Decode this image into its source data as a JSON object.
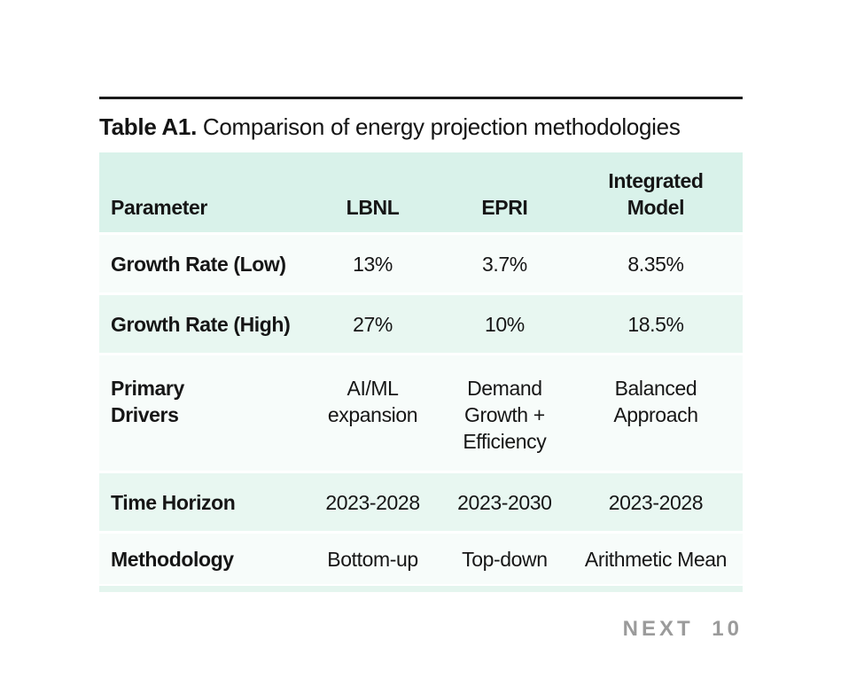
{
  "caption": {
    "bold": "Table A1.",
    "rest": " Comparison of energy projection methodologies"
  },
  "table": {
    "columns": [
      "Parameter",
      "LBNL",
      "EPRI",
      "Integrated\nModel"
    ],
    "rows": [
      {
        "label": "Growth Rate (Low)",
        "values": [
          "13%",
          "3.7%",
          "8.35%"
        ]
      },
      {
        "label": "Growth Rate (High)",
        "values": [
          "27%",
          "10%",
          "18.5%"
        ]
      },
      {
        "label": "Primary\nDrivers",
        "values": [
          "AI/ML\nexpansion",
          "Demand\nGrowth +\nEfficiency",
          "Balanced\nApproach"
        ]
      },
      {
        "label": "Time Horizon",
        "values": [
          "2023-2028",
          "2023-2030",
          "2023-2028"
        ]
      },
      {
        "label": "Methodology",
        "values": [
          "Bottom-up",
          "Top-down",
          "Arithmetic Mean"
        ]
      }
    ]
  },
  "footer": {
    "brand": "NEXT 10"
  },
  "colors": {
    "header_band": "#d9f2ea",
    "row_mint": "#e8f7f1",
    "row_pale": "#f7fcfa",
    "bottom_strip": "#e4f5ee",
    "rule": "#1a1a1a",
    "text": "#161616",
    "brand_gray": "#9b9b9b"
  }
}
